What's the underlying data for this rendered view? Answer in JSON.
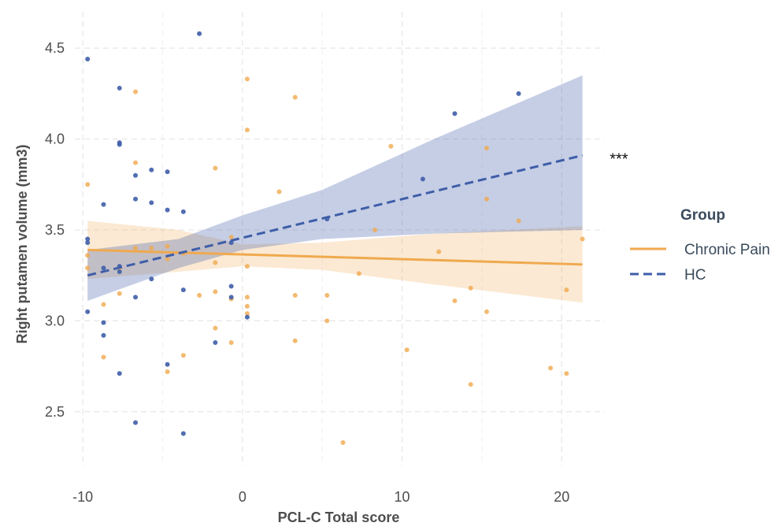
{
  "chart_data": {
    "type": "scatter",
    "xlabel": "PCL-C Total score",
    "ylabel": "Right putamen volume (mm3)",
    "xlim": [
      -10.5,
      22.7
    ],
    "ylim": [
      2.2,
      4.7
    ],
    "x_ticks": [
      -10,
      0,
      10,
      20
    ],
    "x_tick_labels": [
      "-10",
      "0",
      "10",
      "20"
    ],
    "y_ticks": [
      2.5,
      3.0,
      3.5,
      4.0,
      4.5
    ],
    "y_tick_labels": [
      "2.5",
      "3.0",
      "3.5",
      "4.0",
      "4.5"
    ],
    "grid": true,
    "legend": {
      "title": "Group",
      "position": "right"
    },
    "annotation": {
      "text": "***",
      "x": 23.4,
      "y": 3.9
    },
    "series": [
      {
        "name": "Chronic Pain",
        "color": "#f0a94e",
        "line_style": "solid",
        "fit": {
          "x0": -9.7,
          "y0": 3.39,
          "x1": 21.3,
          "y1": 3.31
        },
        "band": {
          "lower": [
            3.23,
            3.27,
            3.3,
            3.28,
            3.2,
            3.1
          ],
          "upper": [
            3.55,
            3.5,
            3.42,
            3.43,
            3.48,
            3.52
          ],
          "x": [
            -9.7,
            -4,
            0,
            5,
            12,
            21.3
          ]
        },
        "points": [
          [
            -9.7,
            3.75
          ],
          [
            -9.7,
            3.36
          ],
          [
            -9.7,
            3.29
          ],
          [
            -8.7,
            3.09
          ],
          [
            -8.7,
            2.8
          ],
          [
            -7.7,
            3.29
          ],
          [
            -7.7,
            3.15
          ],
          [
            -6.7,
            4.26
          ],
          [
            -6.7,
            3.87
          ],
          [
            -6.7,
            3.4
          ],
          [
            -5.7,
            3.4
          ],
          [
            -4.7,
            3.41
          ],
          [
            -4.7,
            3.34
          ],
          [
            -4.7,
            2.72
          ],
          [
            -3.7,
            3.37
          ],
          [
            -3.7,
            2.81
          ],
          [
            -2.7,
            3.14
          ],
          [
            -1.7,
            3.84
          ],
          [
            -1.7,
            3.32
          ],
          [
            -1.7,
            3.16
          ],
          [
            -1.7,
            2.96
          ],
          [
            -0.7,
            3.46
          ],
          [
            -0.7,
            3.12
          ],
          [
            -0.7,
            2.88
          ],
          [
            0.3,
            4.33
          ],
          [
            0.3,
            4.05
          ],
          [
            0.3,
            3.3
          ],
          [
            0.3,
            3.13
          ],
          [
            0.3,
            3.08
          ],
          [
            0.3,
            3.04
          ],
          [
            2.3,
            3.71
          ],
          [
            3.3,
            4.23
          ],
          [
            3.3,
            3.14
          ],
          [
            3.3,
            2.89
          ],
          [
            5.3,
            3.14
          ],
          [
            5.3,
            3.0
          ],
          [
            6.3,
            2.33
          ],
          [
            7.3,
            3.26
          ],
          [
            8.3,
            3.5
          ],
          [
            9.3,
            3.96
          ],
          [
            10.3,
            2.84
          ],
          [
            12.3,
            3.38
          ],
          [
            13.3,
            3.11
          ],
          [
            14.3,
            3.18
          ],
          [
            14.3,
            2.65
          ],
          [
            15.3,
            3.95
          ],
          [
            15.3,
            3.67
          ],
          [
            15.3,
            3.05
          ],
          [
            17.3,
            3.55
          ],
          [
            19.3,
            2.74
          ],
          [
            20.3,
            3.17
          ],
          [
            20.3,
            2.71
          ],
          [
            21.3,
            3.45
          ]
        ]
      },
      {
        "name": "HC",
        "color": "#3f5ea8",
        "line_style": "dashed",
        "fit": {
          "x0": -9.7,
          "y0": 3.25,
          "x1": 21.3,
          "y1": 3.91
        },
        "band": {
          "lower": [
            3.11,
            3.29,
            3.39,
            3.45,
            3.48,
            3.5
          ],
          "upper": [
            3.39,
            3.45,
            3.58,
            3.72,
            4.0,
            4.35
          ],
          "x": [
            -9.7,
            -4,
            0,
            5,
            12,
            21.3
          ]
        },
        "points": [
          [
            -9.7,
            4.44
          ],
          [
            -9.7,
            3.45
          ],
          [
            -9.7,
            3.43
          ],
          [
            -9.7,
            3.05
          ],
          [
            -8.7,
            3.64
          ],
          [
            -8.7,
            3.29
          ],
          [
            -8.7,
            2.99
          ],
          [
            -8.7,
            2.92
          ],
          [
            -7.7,
            4.28
          ],
          [
            -7.7,
            3.98
          ],
          [
            -7.7,
            3.97
          ],
          [
            -7.7,
            3.3
          ],
          [
            -7.7,
            3.27
          ],
          [
            -7.7,
            2.71
          ],
          [
            -6.7,
            3.8
          ],
          [
            -6.7,
            3.67
          ],
          [
            -6.7,
            3.13
          ],
          [
            -6.7,
            2.44
          ],
          [
            -5.7,
            3.83
          ],
          [
            -5.7,
            3.65
          ],
          [
            -5.7,
            3.23
          ],
          [
            -4.7,
            3.82
          ],
          [
            -4.7,
            3.61
          ],
          [
            -4.7,
            2.76
          ],
          [
            -3.7,
            3.6
          ],
          [
            -3.7,
            3.17
          ],
          [
            -3.7,
            2.38
          ],
          [
            -2.7,
            4.58
          ],
          [
            -1.7,
            2.88
          ],
          [
            -0.7,
            3.43
          ],
          [
            -0.7,
            3.19
          ],
          [
            -0.7,
            3.13
          ],
          [
            0.3,
            3.02
          ],
          [
            5.3,
            3.56
          ],
          [
            11.3,
            3.78
          ],
          [
            13.3,
            4.14
          ],
          [
            17.3,
            4.25
          ]
        ]
      }
    ]
  }
}
